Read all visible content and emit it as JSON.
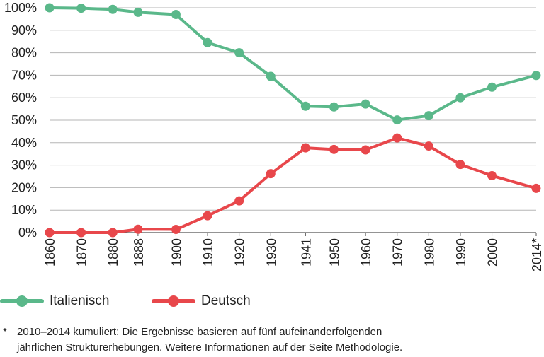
{
  "chart_data": {
    "type": "line",
    "categories": [
      "1860",
      "1870",
      "1880",
      "1888",
      "1900",
      "1910",
      "1920",
      "1930",
      "1941",
      "1950",
      "1960",
      "1970",
      "1980",
      "1990",
      "2000",
      "2014*"
    ],
    "years": [
      1860,
      1870,
      1880,
      1888,
      1900,
      1910,
      1920,
      1930,
      1941,
      1950,
      1960,
      1970,
      1980,
      1990,
      2000,
      2014
    ],
    "series": [
      {
        "name": "Italienisch",
        "color": "#5ab88a",
        "values": [
          100,
          99.8,
          99.3,
          98,
          97,
          84.5,
          80,
          69.5,
          56.2,
          55.9,
          57.2,
          50.1,
          52,
          60,
          64.7,
          69.9
        ]
      },
      {
        "name": "Deutsch",
        "color": "#e8474b",
        "values": [
          0,
          0,
          0,
          1.5,
          1.4,
          7.5,
          14.1,
          26.2,
          37.7,
          37,
          36.8,
          42.1,
          38.5,
          30.3,
          25.3,
          19.7
        ]
      }
    ],
    "ylim": [
      0,
      100
    ],
    "yticks": [
      "0%",
      "10%",
      "20%",
      "30%",
      "40%",
      "50%",
      "60%",
      "70%",
      "80%",
      "90%",
      "100%"
    ],
    "grid": true,
    "legend_position": "bottom-left"
  },
  "footnote": {
    "mark": "*",
    "text_line1": "2010–2014 kumuliert: Die Ergebnisse basieren auf fünf aufeinanderfolgenden",
    "text_line2": "jährlichen Strukturerhebungen. Weitere Informationen auf der Seite Methodologie."
  }
}
